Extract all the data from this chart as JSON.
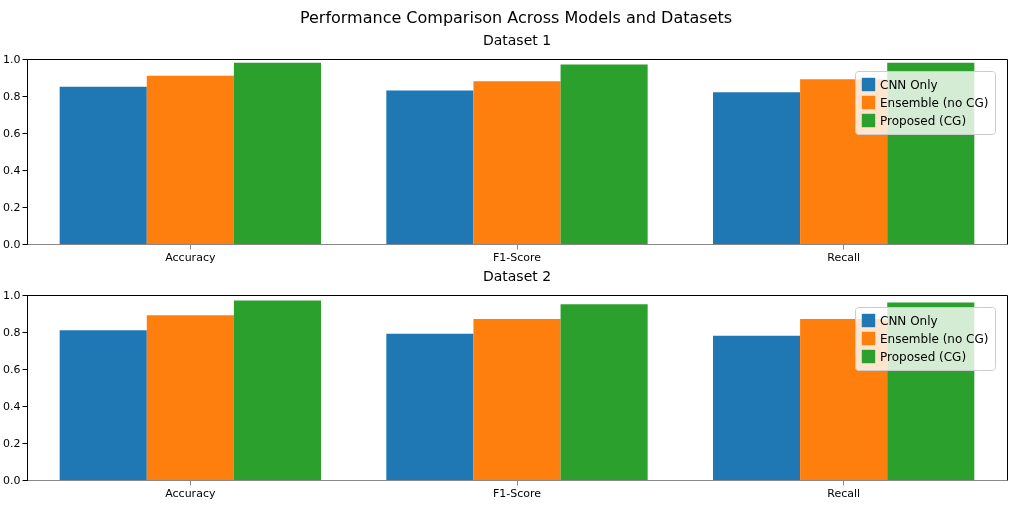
{
  "chart_data": [
    {
      "type": "other",
      "title": "Performance Comparison Across Models and Datasets"
    },
    {
      "type": "bar",
      "title": "Dataset 1",
      "categories": [
        "Accuracy",
        "F1-Score",
        "Recall"
      ],
      "series": [
        {
          "name": "CNN Only",
          "color": "#1f77b4",
          "values": [
            0.85,
            0.83,
            0.82
          ]
        },
        {
          "name": "Ensemble (no CG)",
          "color": "#ff7f0e",
          "values": [
            0.91,
            0.88,
            0.89
          ]
        },
        {
          "name": "Proposed (CG)",
          "color": "#2ca02c",
          "values": [
            0.98,
            0.97,
            0.98
          ]
        }
      ],
      "ylim": [
        0,
        1
      ],
      "yticks": [
        {
          "value": 0,
          "label": "0.0"
        },
        {
          "value": 0.2,
          "label": "0.2"
        },
        {
          "value": 0.4,
          "label": "0.4"
        },
        {
          "value": 0.6,
          "label": "0.6"
        },
        {
          "value": 0.8,
          "label": "0.8"
        },
        {
          "value": 1,
          "label": "1.0"
        }
      ],
      "legend": "top right"
    },
    {
      "type": "bar",
      "title": "Dataset 2",
      "categories": [
        "Accuracy",
        "F1-Score",
        "Recall"
      ],
      "series": [
        {
          "name": "CNN Only",
          "color": "#1f77b4",
          "values": [
            0.81,
            0.79,
            0.78
          ]
        },
        {
          "name": "Ensemble (no CG)",
          "color": "#ff7f0e",
          "values": [
            0.89,
            0.87,
            0.87
          ]
        },
        {
          "name": "Proposed (CG)",
          "color": "#2ca02c",
          "values": [
            0.97,
            0.95,
            0.96
          ]
        }
      ],
      "ylim": [
        0,
        1
      ],
      "yticks": [
        {
          "value": 0,
          "label": "0.0"
        },
        {
          "value": 0.2,
          "label": "0.2"
        },
        {
          "value": 0.4,
          "label": "0.4"
        },
        {
          "value": 0.6,
          "label": "0.6"
        },
        {
          "value": 0.8,
          "label": "0.8"
        },
        {
          "value": 1,
          "label": "1.0"
        }
      ],
      "legend": "top right"
    }
  ]
}
